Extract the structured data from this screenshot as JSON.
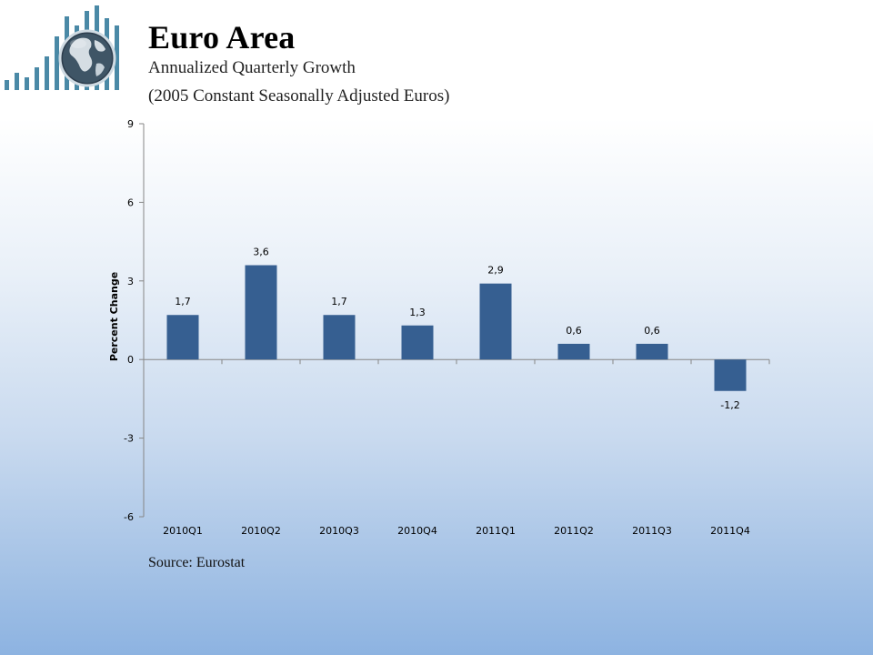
{
  "header": {
    "title": "Euro Area",
    "subtitle_line1": "Annualized Quarterly Growth",
    "subtitle_line2": "(2005 Constant Seasonally Adjusted Euros)"
  },
  "logo": {
    "icon": "globe-bar-chart-icon"
  },
  "footer": {
    "source": "Source: Eurostat"
  },
  "colors": {
    "bar": "#365F91",
    "axis": "#868686",
    "logo_bar": "#4A89A6"
  },
  "chart_data": {
    "type": "bar",
    "categories": [
      "2010Q1",
      "2010Q2",
      "2010Q3",
      "2010Q4",
      "2011Q1",
      "2011Q2",
      "2011Q3",
      "2011Q4"
    ],
    "values": [
      1.7,
      3.6,
      1.7,
      1.3,
      2.9,
      0.6,
      0.6,
      -1.2
    ],
    "data_labels": [
      "1,7",
      "3,6",
      "1,7",
      "1,3",
      "2,9",
      "0,6",
      "0,6",
      "-1,2"
    ],
    "ylabel": "Percent Change",
    "xlabel": "",
    "ylim": [
      -6,
      9
    ],
    "yticks": [
      9,
      6,
      3,
      0,
      -3,
      -6
    ],
    "grid": false,
    "legend": "none"
  }
}
